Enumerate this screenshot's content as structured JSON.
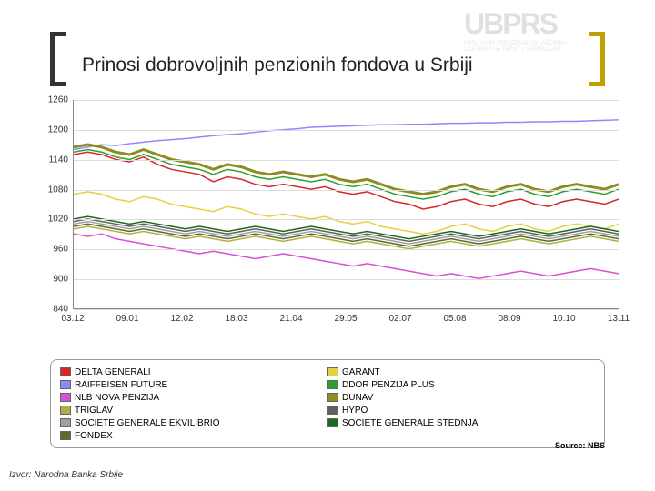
{
  "logo": {
    "main": "UBPRS",
    "sub1": "POSLOVNO UDRUŽENJE OVLAŠĆENIH",
    "sub2": "UČESNIKA NA TRŽIŠTU KAPITALA RS"
  },
  "title": "Prinosi dobrovoljnih penzionih fondova u Srbiji",
  "chart": {
    "type": "line",
    "ylim": [
      840,
      1260
    ],
    "yticks": [
      840,
      900,
      960,
      1020,
      1080,
      1140,
      1200,
      1260
    ],
    "xticks": [
      "03.12",
      "09.01",
      "12.02",
      "18.03",
      "21.04",
      "29.05",
      "02.07",
      "05.08",
      "08.09",
      "10.10",
      "13.11"
    ],
    "plot_bg": "#ffffff",
    "grid_color": "#dddddd",
    "axis_color": "#888888",
    "series": [
      {
        "name": "DELTA GENERALI",
        "color": "#d62728",
        "width": 1.5,
        "y": [
          1150,
          1155,
          1150,
          1140,
          1135,
          1145,
          1130,
          1120,
          1115,
          1110,
          1095,
          1105,
          1100,
          1090,
          1085,
          1090,
          1085,
          1080,
          1085,
          1075,
          1070,
          1075,
          1065,
          1055,
          1050,
          1040,
          1045,
          1055,
          1060,
          1050,
          1045,
          1055,
          1060,
          1050,
          1045,
          1055,
          1060,
          1055,
          1050,
          1060
        ]
      },
      {
        "name": "RAIFFEISEN FUTURE",
        "color": "#8a8aff",
        "width": 1.5,
        "y": [
          1160,
          1165,
          1170,
          1168,
          1172,
          1175,
          1178,
          1180,
          1182,
          1185,
          1188,
          1190,
          1192,
          1195,
          1198,
          1200,
          1202,
          1205,
          1206,
          1207,
          1208,
          1209,
          1210,
          1210,
          1211,
          1211,
          1212,
          1213,
          1213,
          1214,
          1214,
          1215,
          1215,
          1216,
          1216,
          1217,
          1217,
          1218,
          1219,
          1220
        ]
      },
      {
        "name": "NLB NOVA PENZIJA",
        "color": "#d84fd8",
        "width": 1.5,
        "y": [
          990,
          985,
          990,
          980,
          975,
          970,
          965,
          960,
          955,
          950,
          955,
          950,
          945,
          940,
          945,
          950,
          945,
          940,
          935,
          930,
          925,
          930,
          925,
          920,
          915,
          910,
          905,
          910,
          905,
          900,
          905,
          910,
          915,
          910,
          905,
          910,
          915,
          920,
          915,
          910
        ]
      },
      {
        "name": "TRIGLAV",
        "color": "#b0b040",
        "width": 1.5,
        "y": [
          1000,
          1005,
          1000,
          995,
          990,
          995,
          990,
          985,
          980,
          985,
          980,
          975,
          980,
          985,
          980,
          975,
          980,
          985,
          980,
          975,
          970,
          975,
          970,
          965,
          960,
          965,
          970,
          975,
          970,
          965,
          970,
          975,
          980,
          975,
          970,
          975,
          980,
          985,
          980,
          975
        ]
      },
      {
        "name": "SOCIETE GENERALE EKVILIBRIO",
        "color": "#a0a0a0",
        "width": 1.5,
        "y": [
          1010,
          1015,
          1010,
          1005,
          1000,
          1005,
          1000,
          995,
          990,
          995,
          990,
          985,
          990,
          995,
          990,
          985,
          990,
          995,
          990,
          985,
          980,
          985,
          980,
          975,
          970,
          975,
          980,
          985,
          980,
          975,
          980,
          985,
          990,
          985,
          980,
          985,
          990,
          995,
          990,
          985
        ]
      },
      {
        "name": "FONDEX",
        "color": "#556b2f",
        "width": 1.5,
        "y": [
          1005,
          1010,
          1005,
          1000,
          995,
          1000,
          995,
          990,
          985,
          990,
          985,
          980,
          985,
          990,
          985,
          980,
          985,
          990,
          985,
          980,
          975,
          980,
          975,
          970,
          965,
          970,
          975,
          980,
          975,
          970,
          975,
          980,
          985,
          980,
          975,
          980,
          985,
          990,
          985,
          980
        ]
      },
      {
        "name": "GARANT",
        "color": "#e6d040",
        "width": 1.5,
        "y": [
          1070,
          1075,
          1070,
          1060,
          1055,
          1065,
          1060,
          1050,
          1045,
          1040,
          1035,
          1045,
          1040,
          1030,
          1025,
          1030,
          1025,
          1020,
          1025,
          1015,
          1010,
          1015,
          1005,
          1000,
          995,
          990,
          995,
          1005,
          1010,
          1000,
          995,
          1005,
          1010,
          1000,
          995,
          1005,
          1010,
          1005,
          1000,
          1010
        ]
      },
      {
        "name": "DDOR PENZIJA PLUS",
        "color": "#2ca02c",
        "width": 1.5,
        "y": [
          1155,
          1160,
          1155,
          1145,
          1140,
          1150,
          1140,
          1130,
          1125,
          1120,
          1110,
          1120,
          1115,
          1105,
          1100,
          1105,
          1100,
          1095,
          1100,
          1090,
          1085,
          1090,
          1080,
          1070,
          1065,
          1060,
          1065,
          1075,
          1080,
          1070,
          1065,
          1075,
          1080,
          1070,
          1065,
          1075,
          1080,
          1075,
          1070,
          1080
        ]
      },
      {
        "name": "DUNAV",
        "color": "#8c8c20",
        "width": 3,
        "y": [
          1165,
          1170,
          1165,
          1155,
          1150,
          1160,
          1150,
          1140,
          1135,
          1130,
          1120,
          1130,
          1125,
          1115,
          1110,
          1115,
          1110,
          1105,
          1110,
          1100,
          1095,
          1100,
          1090,
          1080,
          1075,
          1070,
          1075,
          1085,
          1090,
          1080,
          1075,
          1085,
          1090,
          1080,
          1075,
          1085,
          1090,
          1085,
          1080,
          1090
        ]
      },
      {
        "name": "HYPO",
        "color": "#606060",
        "width": 1.5,
        "y": [
          1015,
          1020,
          1015,
          1010,
          1005,
          1010,
          1005,
          1000,
          995,
          1000,
          995,
          990,
          995,
          1000,
          995,
          990,
          995,
          1000,
          995,
          990,
          985,
          990,
          985,
          980,
          975,
          980,
          985,
          990,
          985,
          980,
          985,
          990,
          995,
          990,
          985,
          990,
          995,
          1000,
          995,
          990
        ]
      },
      {
        "name": "SOCIETE GENERALE STEDNJA",
        "color": "#1a6b1a",
        "width": 1.5,
        "y": [
          1020,
          1025,
          1020,
          1015,
          1010,
          1015,
          1010,
          1005,
          1000,
          1005,
          1000,
          995,
          1000,
          1005,
          1000,
          995,
          1000,
          1005,
          1000,
          995,
          990,
          995,
          990,
          985,
          980,
          985,
          990,
          995,
          990,
          985,
          990,
          995,
          1000,
          995,
          990,
          995,
          1000,
          1005,
          1000,
          995
        ]
      }
    ]
  },
  "legend_left": [
    "DELTA GENERALI",
    "RAIFFEISEN FUTURE",
    "NLB NOVA PENZIJA",
    "TRIGLAV",
    "SOCIETE GENERALE EKVILIBRIO",
    "FONDEX"
  ],
  "legend_right": [
    "GARANT",
    "DDOR PENZIJA PLUS",
    "DUNAV",
    "HYPO",
    "SOCIETE GENERALE STEDNJA"
  ],
  "legend_colors": {
    "DELTA GENERALI": "#d62728",
    "RAIFFEISEN FUTURE": "#8a8aff",
    "NLB NOVA PENZIJA": "#d84fd8",
    "TRIGLAV": "#b0b040",
    "SOCIETE GENERALE EKVILIBRIO": "#a0a0a0",
    "FONDEX": "#556b2f",
    "GARANT": "#e6d040",
    "DDOR PENZIJA PLUS": "#2ca02c",
    "DUNAV": "#8c8c20",
    "HYPO": "#606060",
    "SOCIETE GENERALE STEDNJA": "#1a6b1a"
  },
  "source": "Source: NBS",
  "footer": "Izvor: Narodna Banka Srbije"
}
